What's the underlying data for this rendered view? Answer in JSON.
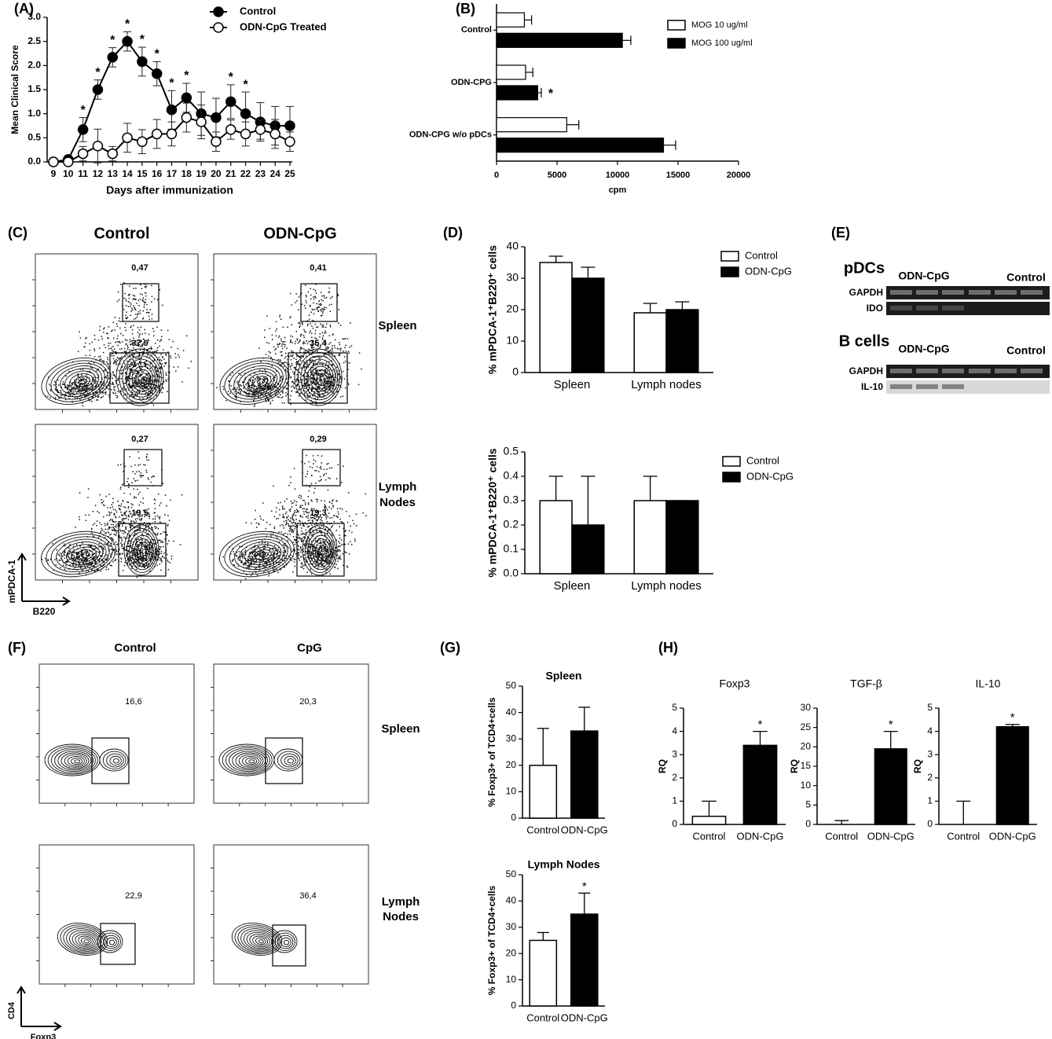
{
  "panel_labels": [
    "(A)",
    "(B)",
    "(C)",
    "(D)",
    "(E)",
    "(F)",
    "(G)",
    "(H)"
  ],
  "chart_data": [
    {
      "type": "line",
      "ylabel": "Mean Clinical Score",
      "xlabel": "Days after immunization",
      "x": [
        9,
        10,
        11,
        12,
        13,
        14,
        15,
        16,
        17,
        18,
        19,
        20,
        21,
        22,
        23,
        24,
        25
      ],
      "xlim": [
        9,
        25
      ],
      "xticks": [
        9,
        10,
        11,
        12,
        13,
        14,
        15,
        16,
        17,
        18,
        19,
        20,
        21,
        22,
        23,
        24,
        25
      ],
      "ylim": [
        0,
        3
      ],
      "yticks": [
        {
          "value": 0,
          "label": "0.0"
        },
        0.5,
        {
          "value": 1,
          "label": "1.0"
        },
        1.5,
        {
          "value": 2,
          "label": "2.0"
        },
        2.5,
        {
          "value": 3,
          "label": "3.0"
        }
      ],
      "series": [
        {
          "name": "Control",
          "color": "#000000",
          "marker": "filled",
          "values": [
            0,
            0.05,
            0.67,
            1.5,
            2.17,
            2.5,
            2.08,
            1.83,
            1.08,
            1.33,
            1.0,
            0.92,
            1.25,
            1.0,
            0.83,
            0.75,
            0.75
          ],
          "errors": [
            0,
            0.05,
            0.25,
            0.2,
            0.2,
            0.2,
            0.3,
            0.25,
            0.4,
            0.3,
            0.45,
            0.4,
            0.35,
            0.45,
            0.4,
            0.4,
            0.4
          ]
        },
        {
          "name": "ODN-CpG Treated",
          "color": "#000000",
          "marker": "open",
          "values": [
            0,
            0,
            0.17,
            0.33,
            0.17,
            0.5,
            0.42,
            0.58,
            0.58,
            0.92,
            0.83,
            0.42,
            0.67,
            0.58,
            0.67,
            0.58,
            0.42
          ],
          "errors": [
            0,
            0,
            0.15,
            0.35,
            0.15,
            0.3,
            0.25,
            0.3,
            0.25,
            0.3,
            0.35,
            0.2,
            0.2,
            0.25,
            0.2,
            0.3,
            0.2
          ]
        }
      ],
      "annotations": [
        {
          "x": 11,
          "text": "*"
        },
        {
          "x": 12,
          "text": "*"
        },
        {
          "x": 13,
          "text": "*"
        },
        {
          "x": 14,
          "text": "*"
        },
        {
          "x": 15,
          "text": "*"
        },
        {
          "x": 16,
          "text": "*"
        },
        {
          "x": 17,
          "text": "*"
        },
        {
          "x": 18,
          "text": "*"
        },
        {
          "x": 21,
          "text": "*"
        },
        {
          "x": 22,
          "text": "*"
        }
      ]
    },
    {
      "type": "hbar",
      "xlabel": "cpm",
      "categories": [
        "Control",
        "ODN-CPG",
        "ODN-CPG w/o pDCs"
      ],
      "xlim": [
        0,
        20000
      ],
      "xticks": [
        0,
        5000,
        10000,
        15000,
        20000
      ],
      "series": [
        {
          "name": "MOG 10 ug/ml",
          "color": "#ffffff",
          "values": [
            2300,
            2400,
            5800
          ],
          "errors": [
            600,
            600,
            1000
          ]
        },
        {
          "name": "MOG 100 ug/ml",
          "color": "#000000",
          "values": [
            10400,
            3400,
            13800
          ],
          "errors": [
            700,
            300,
            1000
          ]
        }
      ],
      "annotations": [
        {
          "category": "ODN-CPG",
          "series": "MOG 100 ug/ml",
          "text": "*"
        }
      ]
    },
    {
      "type": "bar",
      "ylabel": "% mPDCA-1⁺B220⁺ cells",
      "categories": [
        "Spleen",
        "Lymph nodes"
      ],
      "ylim": [
        0,
        40
      ],
      "yticks": [
        0,
        10,
        20,
        30,
        40
      ],
      "series": [
        {
          "name": "Control",
          "color": "#ffffff",
          "values": [
            35,
            19
          ],
          "errors": [
            2,
            3
          ]
        },
        {
          "name": "ODN-CpG",
          "color": "#000000",
          "values": [
            30,
            20
          ],
          "errors": [
            3.5,
            2.5
          ]
        }
      ]
    },
    {
      "type": "bar",
      "ylabel": "% mPDCA-1⁺B220⁺ cells",
      "categories": [
        "Spleen",
        "Lymph nodes"
      ],
      "ylim": [
        0,
        0.5
      ],
      "yticks": [
        {
          "value": 0,
          "label": "0.0"
        },
        0.1,
        0.2,
        0.3,
        0.4,
        0.5
      ],
      "series": [
        {
          "name": "Control",
          "color": "#ffffff",
          "values": [
            0.3,
            0.3
          ],
          "errors": [
            0.1,
            0.1
          ]
        },
        {
          "name": "ODN-CpG",
          "color": "#000000",
          "values": [
            0.2,
            0.3
          ],
          "errors": [
            0.2,
            0
          ]
        }
      ]
    },
    {
      "type": "bar",
      "title": "Spleen",
      "ylabel": "% Foxp3+ of TCD4+cells",
      "categories": [
        "Control",
        "ODN-CpG"
      ],
      "ylim": [
        0,
        50
      ],
      "yticks": [
        0,
        10,
        20,
        30,
        40,
        50
      ],
      "series": [
        {
          "colors": [
            "#ffffff",
            "#000000"
          ],
          "values": [
            20,
            33
          ],
          "errors": [
            14,
            9
          ]
        }
      ]
    },
    {
      "type": "bar",
      "title": "Lymph Nodes",
      "ylabel": "% Foxp3+ of TCD4+cells",
      "categories": [
        "Control",
        "ODN-CpG"
      ],
      "ylim": [
        0,
        50
      ],
      "yticks": [
        0,
        10,
        20,
        30,
        40,
        50
      ],
      "series": [
        {
          "colors": [
            "#ffffff",
            "#000000"
          ],
          "values": [
            25,
            35
          ],
          "errors": [
            3,
            8
          ]
        }
      ],
      "annotations": [
        {
          "category": "ODN-CpG",
          "text": "*"
        }
      ]
    },
    {
      "type": "bar",
      "title": "Foxp3",
      "ylabel": "RQ",
      "categories": [
        "Control",
        "ODN-CpG"
      ],
      "ylim": [
        0,
        5
      ],
      "yticks": [
        0,
        1,
        2,
        3,
        4,
        5
      ],
      "series": [
        {
          "colors": [
            "#ffffff",
            "#000000"
          ],
          "values": [
            0.35,
            3.4
          ],
          "errors": [
            0.65,
            0.6
          ]
        }
      ],
      "annotations": [
        {
          "category": "ODN-CpG",
          "text": "*"
        }
      ]
    },
    {
      "type": "bar",
      "title": "TGF-β",
      "ylabel": "RQ",
      "categories": [
        "Control",
        "ODN-CpG"
      ],
      "ylim": [
        0,
        30
      ],
      "yticks": [
        0,
        5,
        10,
        15,
        20,
        25,
        30
      ],
      "series": [
        {
          "colors": [
            "#ffffff",
            "#000000"
          ],
          "values": [
            0,
            19.5
          ],
          "errors": [
            1,
            4.5
          ]
        }
      ],
      "annotations": [
        {
          "category": "ODN-CpG",
          "text": "*"
        }
      ]
    },
    {
      "type": "bar",
      "title": "IL-10",
      "ylabel": "RQ",
      "categories": [
        "Control",
        "ODN-CpG"
      ],
      "ylim": [
        0,
        5
      ],
      "yticks": [
        0,
        1,
        2,
        3,
        4,
        5
      ],
      "series": [
        {
          "colors": [
            "#ffffff",
            "#000000"
          ],
          "values": [
            0,
            4.2
          ],
          "errors": [
            1,
            0.1
          ]
        }
      ],
      "annotations": [
        {
          "category": "ODN-CpG",
          "text": "*"
        }
      ]
    }
  ],
  "flow_c": {
    "columns": [
      "Control",
      "ODN-CpG"
    ],
    "rows": [
      {
        "label": [
          "Spleen"
        ],
        "gates": [
          [
            "0,47",
            "37,9"
          ],
          [
            "0,41",
            "35,4"
          ]
        ]
      },
      {
        "label": [
          "Lymph",
          "Nodes"
        ],
        "gates": [
          [
            "0,27",
            "19,5"
          ],
          [
            "0,29",
            "19,3"
          ]
        ]
      }
    ],
    "y_axis": "mPDCA-1",
    "x_axis": "B220"
  },
  "gel_e": {
    "blocks": [
      {
        "title": "pDCs",
        "groups": [
          "ODN-CpG",
          "Control"
        ],
        "lanes": [
          "GAPDH",
          "IDO"
        ]
      },
      {
        "title": "B cells",
        "groups": [
          "ODN-CpG",
          "Control"
        ],
        "lanes": [
          "GAPDH",
          "IL-10"
        ]
      }
    ]
  },
  "flow_f": {
    "columns": [
      "Control",
      "CpG"
    ],
    "rows": [
      {
        "label": [
          "Spleen"
        ],
        "gates": [
          "16,6",
          "20,3"
        ]
      },
      {
        "label": [
          "Lymph",
          "Nodes"
        ],
        "gates": [
          "22,9",
          "36,4"
        ]
      }
    ],
    "y_axis": "CD4",
    "x_axis": "Foxp3"
  }
}
